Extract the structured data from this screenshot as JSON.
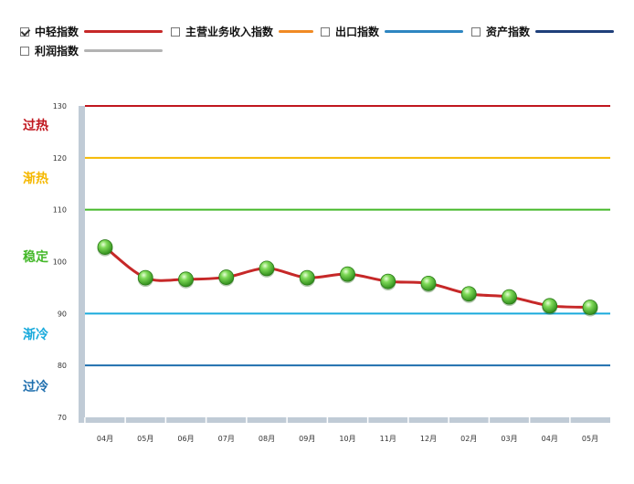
{
  "legend": {
    "items": [
      {
        "label": "中轻指数",
        "checked": true,
        "color": "#c62828"
      },
      {
        "label": "主营业务收入指数",
        "checked": false,
        "color": "#f08a24"
      },
      {
        "label": "出口指数",
        "checked": false,
        "color": "#2e86c1"
      },
      {
        "label": "资产指数",
        "checked": false,
        "color": "#1f3f7a"
      },
      {
        "label": "利润指数",
        "checked": false,
        "color": "#b3b3b3"
      }
    ]
  },
  "zones": {
    "overheat": {
      "label": "过热",
      "color": "#c0161e"
    },
    "warm": {
      "label": "渐热",
      "color": "#f5b800"
    },
    "stable": {
      "label": "稳定",
      "color": "#44b829"
    },
    "cooling": {
      "label": "渐冷",
      "color": "#19aadc"
    },
    "cold": {
      "label": "过冷",
      "color": "#1f6fae"
    }
  },
  "chart_data": {
    "type": "line",
    "categories": [
      "04月",
      "05月",
      "06月",
      "07月",
      "08月",
      "09月",
      "10月",
      "11月",
      "12月",
      "02月",
      "03月",
      "04月",
      "05月"
    ],
    "series": [
      {
        "name": "中轻指数",
        "color": "#c62828",
        "values": [
          102.8,
          96.9,
          96.6,
          97.0,
          98.7,
          96.9,
          97.6,
          96.2,
          95.8,
          93.8,
          93.2,
          91.5,
          91.2
        ]
      }
    ],
    "ylim": [
      70,
      130
    ],
    "yticks": [
      70,
      80,
      90,
      100,
      110,
      120,
      130
    ],
    "reference_lines": [
      {
        "value": 130,
        "color": "#c0161e"
      },
      {
        "value": 120,
        "color": "#f5b800"
      },
      {
        "value": 110,
        "color": "#44b829"
      },
      {
        "value": 90,
        "color": "#19aadc"
      },
      {
        "value": 80,
        "color": "#1f6fae"
      }
    ]
  }
}
